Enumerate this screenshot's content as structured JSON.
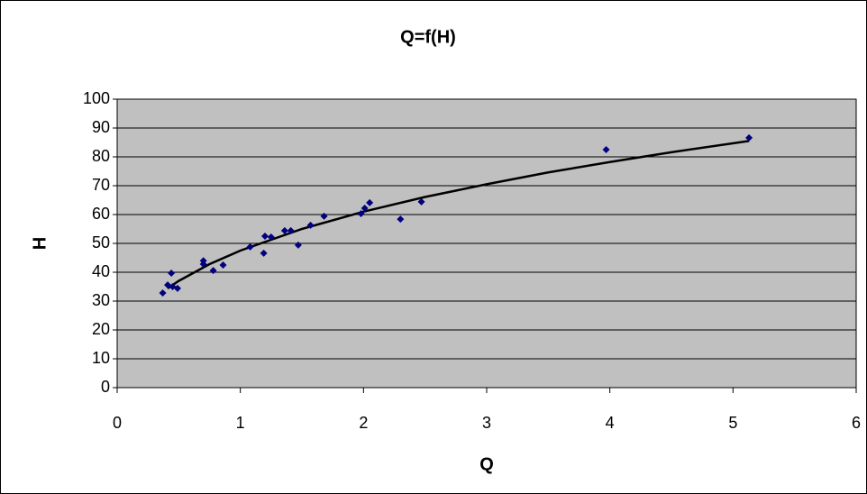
{
  "chart_data": {
    "type": "scatter",
    "title": "Q=f(H)",
    "x_label": "Q",
    "y_label": "H",
    "x": [
      0.37,
      0.41,
      0.44,
      0.45,
      0.49,
      0.7,
      0.7,
      0.78,
      0.86,
      1.08,
      1.19,
      1.2,
      1.25,
      1.36,
      1.41,
      1.47,
      1.57,
      1.68,
      1.98,
      2.01,
      2.05,
      2.3,
      2.47,
      3.97,
      5.13
    ],
    "values": [
      32.8,
      35.6,
      39.7,
      35,
      34.4,
      44,
      42.8,
      40.6,
      42.5,
      48.8,
      46.6,
      52.5,
      52.2,
      54.4,
      54.4,
      49.4,
      56.3,
      59.4,
      60.3,
      62.2,
      64.1,
      58.4,
      64.4,
      82.5,
      86.6
    ],
    "color": "#000080",
    "trendline": {
      "x": [
        0.41,
        0.5,
        0.75,
        1,
        1.5,
        2,
        2.5,
        3,
        3.5,
        4,
        4.5,
        5.13
      ],
      "values": [
        34.4,
        37.0,
        42.8,
        47.5,
        55.0,
        61.0,
        66.1,
        70.5,
        74.6,
        78.2,
        81.6,
        85.5
      ],
      "color": "#000000"
    },
    "xlim": [
      0,
      6
    ],
    "xticks": [
      0,
      1,
      2,
      3,
      4,
      5,
      6
    ],
    "ylim": [
      0,
      100
    ],
    "yticks": [
      0,
      10,
      20,
      30,
      40,
      50,
      60,
      70,
      80,
      90,
      100
    ],
    "grid": true,
    "plot_background": "#c0c0c0"
  }
}
